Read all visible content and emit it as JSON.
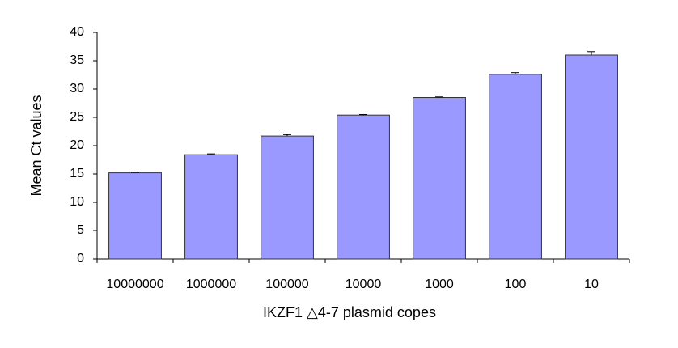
{
  "chart_data": {
    "type": "bar",
    "x_label": "IKZF1 △4-7 plasmid copes",
    "y_label": "Mean Ct values",
    "categories": [
      "10000000",
      "1000000",
      "100000",
      "10000",
      "1000",
      "100",
      "10"
    ],
    "values": [
      15.2,
      18.4,
      21.7,
      25.4,
      28.5,
      32.6,
      36.0
    ],
    "errors": [
      0.1,
      0.15,
      0.25,
      0.1,
      0.1,
      0.3,
      0.6
    ],
    "color": "#9999ff",
    "ylim": [
      0,
      40
    ],
    "yticks": [
      0,
      5,
      10,
      15,
      20,
      25,
      30,
      35,
      40
    ],
    "grid": false
  }
}
